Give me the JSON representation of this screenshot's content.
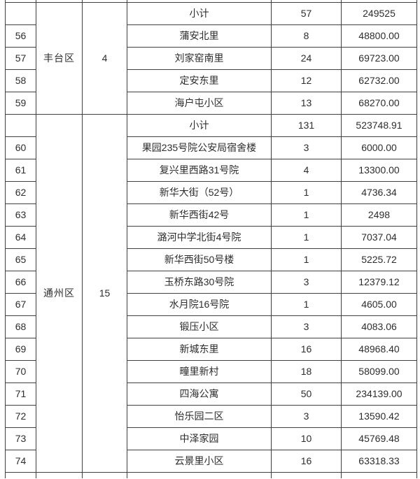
{
  "colors": {
    "border": "#3f3f3f",
    "text": "#2d2d2d",
    "background": "#ffffff"
  },
  "table": {
    "groups": [
      {
        "district": "丰台区",
        "count": "4",
        "subtotal": {
          "name": "小计",
          "qty": "57",
          "amount": "249525"
        },
        "rows": [
          {
            "no": "56",
            "name": "蒲安北里",
            "qty": "8",
            "amount": "48800.00"
          },
          {
            "no": "57",
            "name": "刘家窑南里",
            "qty": "24",
            "amount": "69723.00"
          },
          {
            "no": "58",
            "name": "定安东里",
            "qty": "12",
            "amount": "62732.00"
          },
          {
            "no": "59",
            "name": "海户屯小区",
            "qty": "13",
            "amount": "68270.00"
          }
        ]
      },
      {
        "district": "通州区",
        "count": "15",
        "subtotal": {
          "name": "小计",
          "qty": "131",
          "amount": "523748.91"
        },
        "rows": [
          {
            "no": "60",
            "name": "果园235号院公安局宿舍楼",
            "qty": "3",
            "amount": "6000.00"
          },
          {
            "no": "61",
            "name": "复兴里西路31号院",
            "qty": "4",
            "amount": "13300.00"
          },
          {
            "no": "62",
            "name": "新华大街（52号）",
            "qty": "1",
            "amount": "4736.34"
          },
          {
            "no": "63",
            "name": "新华西街42号",
            "qty": "1",
            "amount": "2498"
          },
          {
            "no": "64",
            "name": "潞河中学北街4号院",
            "qty": "1",
            "amount": "7037.04"
          },
          {
            "no": "65",
            "name": "新华西街50号楼",
            "qty": "1",
            "amount": "5225.72"
          },
          {
            "no": "66",
            "name": "玉桥东路30号院",
            "qty": "3",
            "amount": "12379.12"
          },
          {
            "no": "67",
            "name": "水月院16号院",
            "qty": "1",
            "amount": "4605.00"
          },
          {
            "no": "68",
            "name": "锻压小区",
            "qty": "3",
            "amount": "4083.06"
          },
          {
            "no": "69",
            "name": "新城东里",
            "qty": "16",
            "amount": "48968.40"
          },
          {
            "no": "70",
            "name": "疃里新村",
            "qty": "18",
            "amount": "58099.00"
          },
          {
            "no": "71",
            "name": "四海公寓",
            "qty": "50",
            "amount": "234139.00"
          },
          {
            "no": "72",
            "name": "怡乐园二区",
            "qty": "3",
            "amount": "13590.42"
          },
          {
            "no": "73",
            "name": "中泽家园",
            "qty": "10",
            "amount": "45769.48"
          },
          {
            "no": "74",
            "name": "云景里小区",
            "qty": "16",
            "amount": "63318.33"
          }
        ]
      }
    ]
  }
}
